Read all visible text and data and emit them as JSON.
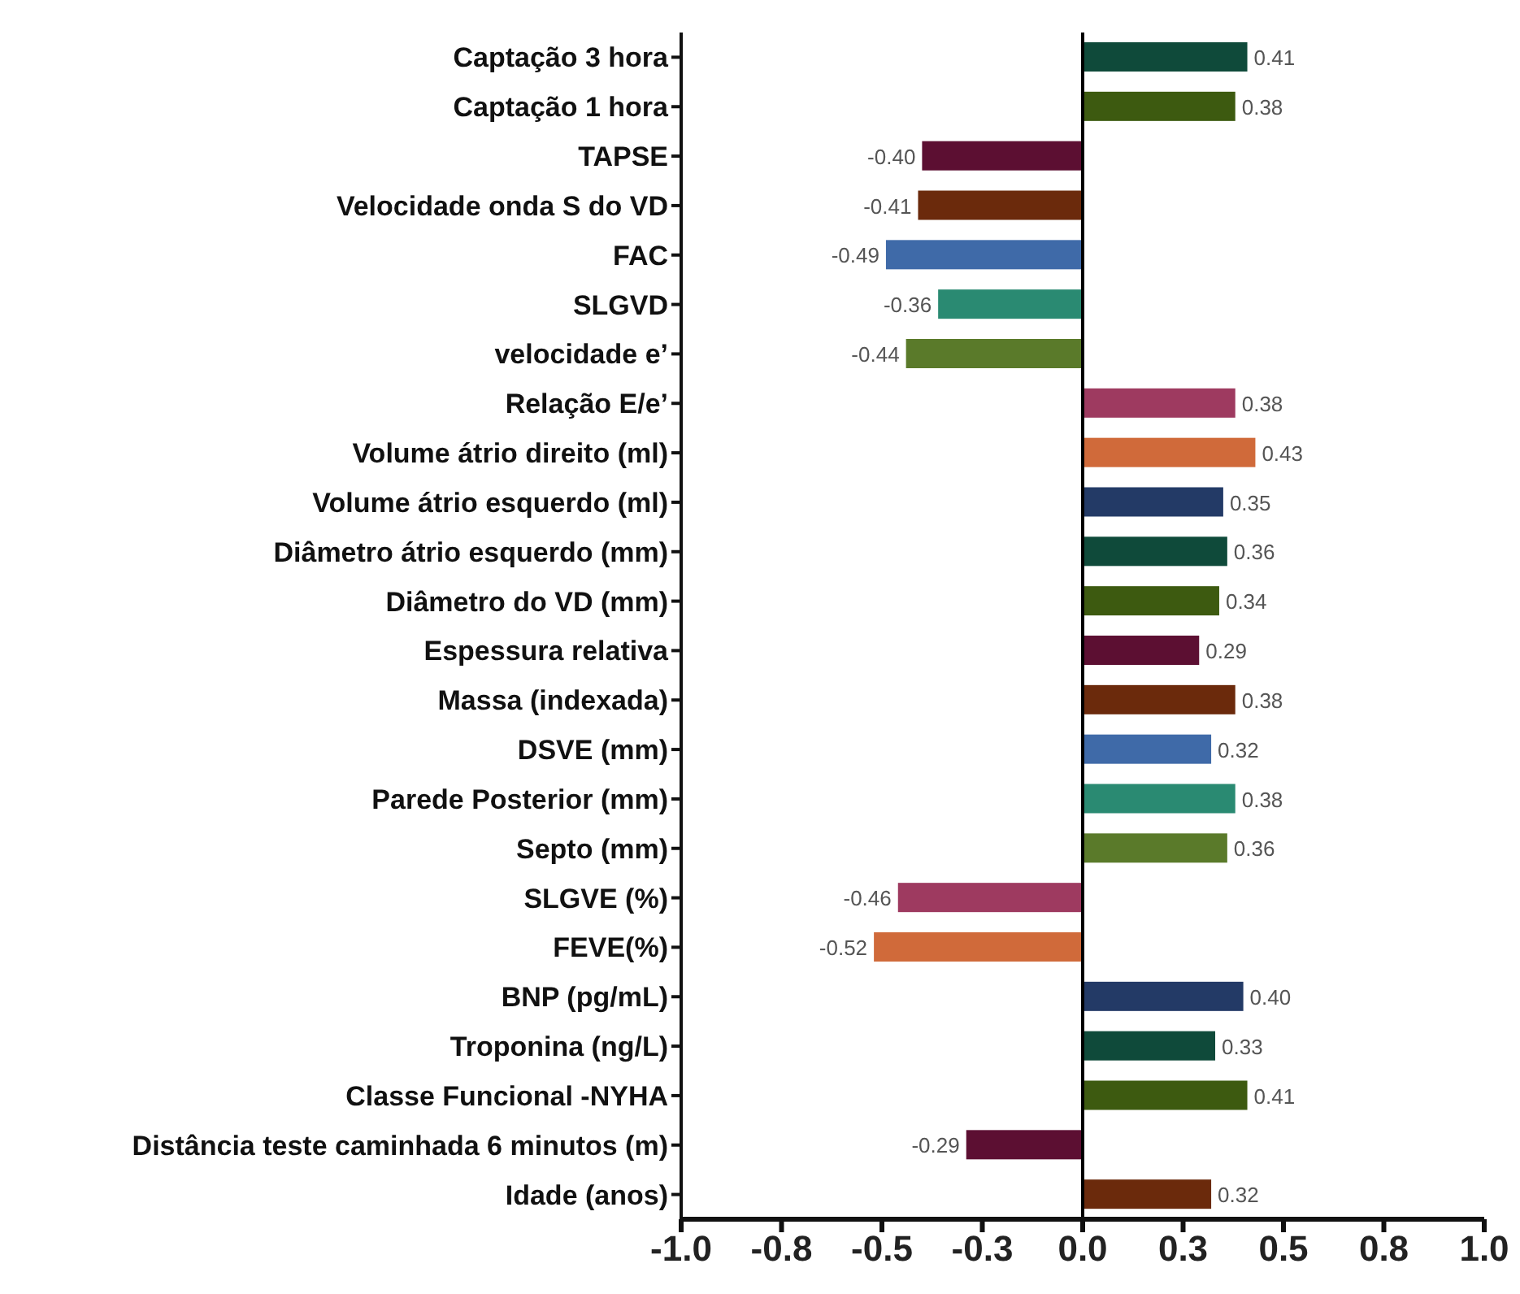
{
  "chart_data": {
    "type": "bar",
    "orientation": "horizontal",
    "categories": [
      "Captação 3 hora",
      "Captação 1 hora",
      "TAPSE",
      "Velocidade onda S do VD",
      "FAC",
      "SLGVD",
      "velocidade e’",
      "Relação E/e’",
      "Volume átrio direito (ml)",
      "Volume átrio esquerdo (ml)",
      "Diâmetro átrio esquerdo (mm)",
      "Diâmetro do VD (mm)",
      "Espessura relativa",
      "Massa (indexada)",
      "DSVE (mm)",
      "Parede Posterior (mm)",
      "Septo (mm)",
      "SLGVE (%)",
      "FEVE(%)",
      "BNP (pg/mL)",
      "Troponina (ng/L)",
      "Classe Funcional -NYHA",
      "Distância teste caminhada 6 minutos (m)",
      "Idade (anos)"
    ],
    "values": [
      0.41,
      0.38,
      -0.4,
      -0.41,
      -0.49,
      -0.36,
      -0.44,
      0.38,
      0.43,
      0.35,
      0.36,
      0.34,
      0.29,
      0.38,
      0.32,
      0.38,
      0.36,
      -0.46,
      -0.52,
      0.4,
      0.33,
      0.41,
      -0.29,
      0.32
    ],
    "value_labels": [
      "0.41",
      "0.38",
      "-0.40",
      "-0.41",
      "-0.49",
      "-0.36",
      "-0.44",
      "0.38",
      "0.43",
      "0.35",
      "0.36",
      "0.34",
      "0.29",
      "0.38",
      "0.32",
      "0.38",
      "0.36",
      "-0.46",
      "-0.52",
      "0.40",
      "0.33",
      "0.41",
      "-0.29",
      "0.32"
    ],
    "colors": [
      "#0f4a3a",
      "#3d5a10",
      "#5c0f32",
      "#6b2a0c",
      "#3f6aa8",
      "#2a8a72",
      "#5a7a2a",
      "#9e3a60",
      "#d06a3a",
      "#233a66",
      "#0f4a3a",
      "#3d5a10",
      "#5c0f32",
      "#6b2a0c",
      "#3f6aa8",
      "#2a8a72",
      "#5a7a2a",
      "#9e3a60",
      "#d06a3a",
      "#233a66",
      "#0f4a3a",
      "#3d5a10",
      "#5c0f32",
      "#6b2a0c"
    ],
    "xlim": [
      -1,
      1
    ],
    "xticks": [
      {
        "value": -1,
        "label": "-1.0"
      },
      {
        "value": -0.75,
        "label": "-0.8"
      },
      {
        "value": -0.5,
        "label": "-0.5"
      },
      {
        "value": -0.25,
        "label": "-0.3"
      },
      {
        "value": 0,
        "label": "0.0"
      },
      {
        "value": 0.25,
        "label": "0.3"
      },
      {
        "value": 0.5,
        "label": "0.5"
      },
      {
        "value": 0.75,
        "label": "0.8"
      },
      {
        "value": 1,
        "label": "1.0"
      }
    ],
    "ref_lines": [
      {
        "axis": "x",
        "value": 0,
        "color": "#000000"
      }
    ],
    "grid": false,
    "legend": false
  }
}
